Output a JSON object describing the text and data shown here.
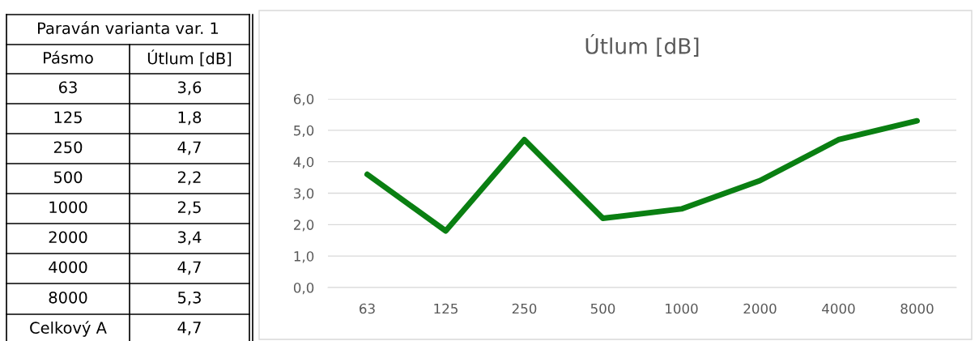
{
  "chart_data": [
    {
      "type": "other",
      "annotations": [
        "Paraván varianta var. 1",
        "Pásmo",
        "Útlum [dB]",
        "63",
        "3,6",
        "125",
        "1,8",
        "250",
        "4,7",
        "500",
        "2,2",
        "1000",
        "2,5",
        "2000",
        "3,4",
        "4000",
        "4,7",
        "8000",
        "5,3",
        "Celkový A",
        "4,7"
      ]
    },
    {
      "type": "line",
      "title": "Útlum [dB]",
      "categories": [
        "63",
        "125",
        "250",
        "500",
        "1000",
        "2000",
        "4000",
        "8000"
      ],
      "series": [
        {
          "color": "#0a7f12",
          "values": [
            3.6,
            1.8,
            4.7,
            2.2,
            2.5,
            3.4,
            4.7,
            5.3
          ]
        }
      ],
      "ylim": [
        0,
        6
      ],
      "yticks": [
        {
          "value": 0,
          "label": "0,0"
        },
        {
          "value": 1,
          "label": "1,0"
        },
        {
          "value": 2,
          "label": "2,0"
        },
        {
          "value": 3,
          "label": "3,0"
        },
        {
          "value": 4,
          "label": "4,0"
        },
        {
          "value": 5,
          "label": "5,0"
        },
        {
          "value": 6,
          "label": "6,0"
        }
      ],
      "grid": "y",
      "marker": "none",
      "line_style": "solid"
    }
  ]
}
